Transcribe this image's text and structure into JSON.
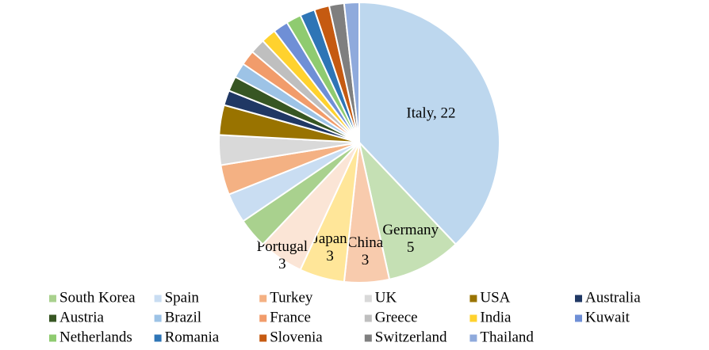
{
  "chart_data": {
    "type": "pie",
    "categories": [
      "Italy",
      "Germany",
      "China",
      "Japan",
      "Portugal",
      "South Korea",
      "Spain",
      "Turkey",
      "UK",
      "USA",
      "Australia",
      "Austria",
      "Brazil",
      "France",
      "Greece",
      "India",
      "Kuwait",
      "Netherlands",
      "Romania",
      "Slovenia",
      "Switzerland",
      "Thailand"
    ],
    "values": [
      22,
      5,
      3,
      3,
      3,
      2,
      2,
      2,
      2,
      2,
      1,
      1,
      1,
      1,
      1,
      1,
      1,
      1,
      1,
      1,
      1,
      1
    ],
    "value_labels": [
      "Italy, 22",
      "Germany 5",
      "China 3",
      "Japan 3",
      "Portugal 3",
      null,
      null,
      null,
      null,
      null,
      null,
      null,
      null,
      null,
      null,
      null,
      null,
      null,
      null,
      null,
      null,
      null
    ],
    "colors": [
      "#bdd7ee",
      "#c5e0b4",
      "#f8cbad",
      "#ffe699",
      "#fbe5d6",
      "#a9d18e",
      "#c9ddf2",
      "#f4b183",
      "#d9d9d9",
      "#997300",
      "#203864",
      "#375623",
      "#9dc3e6",
      "#f19c6b",
      "#bfbfbf",
      "#ffd22e",
      "#6f8fd6",
      "#8fcb70",
      "#2e75b6",
      "#c55a11",
      "#7f7f7f",
      "#8faadc"
    ],
    "legend_order": [
      "South Korea",
      "Spain",
      "Turkey",
      "UK",
      "USA",
      "Australia",
      "Austria",
      "Brazil",
      "France",
      "Greece",
      "India",
      "Kuwait",
      "Netherlands",
      "Romania",
      "Slovenia",
      "Switzerland",
      "Thailand"
    ],
    "legend": "bottom"
  }
}
